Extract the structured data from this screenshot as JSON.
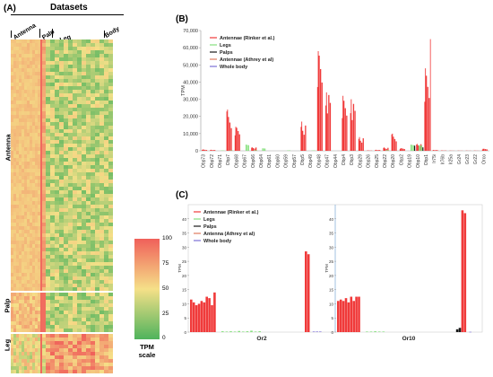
{
  "panel_a": {
    "tag": "(A)",
    "datasets_title": "Datasets",
    "column_groups": [
      "Antenna",
      "Palp",
      "Leg",
      "Body"
    ],
    "row_groups": [
      "Antenna",
      "Palp",
      "Leg"
    ],
    "colorbar": {
      "title_line1": "TPM",
      "title_line2": "scale",
      "ticks": [
        "100",
        "75",
        "50",
        "25",
        "0"
      ],
      "colors": {
        "high": "#f0605a",
        "mid": "#f5e088",
        "low": "#4fb35c"
      }
    }
  },
  "panel_b": {
    "tag": "(B)"
  },
  "panel_c": {
    "tag": "(C)"
  },
  "chart_data": [
    {
      "type": "heatmap",
      "panel": "A",
      "title": "Datasets",
      "x_groups": [
        "Antenna",
        "Palp",
        "Leg",
        "Body"
      ],
      "y_groups": [
        "Antenna",
        "Palp",
        "Leg"
      ],
      "scale_label": "TPM scale",
      "scale_range": [
        0,
        100
      ]
    },
    {
      "type": "bar",
      "panel": "B",
      "ylabel": "TPM",
      "ylim": [
        0,
        70000
      ],
      "yticks": [
        "0",
        "10,000",
        "20,000",
        "30,000",
        "40,000",
        "50,000",
        "60,000",
        "70,000"
      ],
      "legend_position": "top-left",
      "legend": [
        {
          "name": "Antennae (Rinker et al.)",
          "color": "#f03a3a"
        },
        {
          "name": "Legs",
          "color": "#86e07e"
        },
        {
          "name": "Palps",
          "color": "#1a1a1a"
        },
        {
          "name": "Antennae (Athrey et al)",
          "color": "#e07a5f"
        },
        {
          "name": "Whole body",
          "color": "#7b6fd6"
        }
      ],
      "categories": [
        "Obp73",
        "Obp72",
        "Obp71",
        "Obp7",
        "Obp68",
        "Obp67",
        "Obp66",
        "Obp64",
        "Obp61",
        "Obp60",
        "Obp59",
        "Obp57",
        "Obp5",
        "Obp49",
        "Obp48",
        "Obp47",
        "Obp44",
        "Obp4",
        "Obp3",
        "Obp29",
        "Obp26",
        "Obp25",
        "Obp22",
        "Obp20",
        "Obp2",
        "Obp19",
        "Obp10",
        "Obp1",
        "Ir75i",
        "Ir76b",
        "Ir25a",
        "Gr24",
        "Gr23",
        "Gr22",
        "Orco"
      ],
      "values": {
        "Antennae (Rinker et al.)": [
          800,
          600,
          0,
          24000,
          14000,
          0,
          2000,
          0,
          0,
          0,
          0,
          0,
          17000,
          0,
          58000,
          34000,
          0,
          32000,
          30000,
          8000,
          200,
          600,
          2000,
          10000,
          1500,
          0,
          4000,
          48000,
          500,
          200,
          100,
          100,
          100,
          100,
          1200
        ],
        "Legs": [
          0,
          0,
          300,
          300,
          0,
          4500,
          500,
          1500,
          0,
          0,
          300,
          0,
          0,
          300,
          0,
          0,
          0,
          0,
          0,
          0,
          0,
          0,
          500,
          0,
          0,
          4500,
          5000,
          0,
          0,
          0,
          0,
          0,
          0,
          0,
          0
        ],
        "Palps": [
          0,
          0,
          0,
          0,
          0,
          0,
          0,
          0,
          0,
          0,
          0,
          0,
          0,
          0,
          0,
          0,
          0,
          0,
          0,
          0,
          0,
          0,
          0,
          0,
          0,
          3000,
          2000,
          0,
          0,
          0,
          0,
          0,
          0,
          0,
          0
        ],
        "Antennae (Athrey et al)": [
          0,
          0,
          0,
          0,
          0,
          0,
          0,
          0,
          0,
          0,
          0,
          0,
          0,
          0,
          0,
          0,
          0,
          0,
          0,
          0,
          0,
          0,
          0,
          0,
          0,
          0,
          0,
          0,
          0,
          0,
          0,
          0,
          0,
          0,
          0
        ],
        "Whole body": [
          0,
          0,
          0,
          0,
          0,
          0,
          0,
          0,
          0,
          0,
          0,
          0,
          0,
          0,
          0,
          0,
          0,
          0,
          0,
          0,
          0,
          0,
          0,
          0,
          0,
          0,
          0,
          0,
          0,
          0,
          0,
          0,
          0,
          0,
          0
        ]
      }
    },
    {
      "type": "bar",
      "panel": "C",
      "ylabel": "TPM",
      "ylim": [
        0,
        45
      ],
      "yticks": [
        "0",
        "5",
        "10",
        "15",
        "20",
        "25",
        "30",
        "35",
        "40"
      ],
      "legend_position": "top-left",
      "legend": [
        {
          "name": "Antennae (Rinker et al.)",
          "color": "#f03a3a"
        },
        {
          "name": "Legs",
          "color": "#86e07e"
        },
        {
          "name": "Palps",
          "color": "#1a1a1a"
        },
        {
          "name": "Antenna (Athrey et al)",
          "color": "#e07a5f"
        },
        {
          "name": "Whole body",
          "color": "#7b6fd6"
        }
      ],
      "categories": [
        "Or2",
        "Or10"
      ],
      "groups": [
        {
          "name": "Or2",
          "antennae_rinker": [
            11.5,
            10.5,
            9.5,
            10,
            11,
            10.5,
            12.5,
            12,
            9.5,
            14
          ],
          "legs": [
            0.3,
            0.2,
            0.3,
            0.2,
            0.4,
            0.2,
            0.3,
            0.5,
            0.2,
            0.3
          ],
          "palps": [],
          "antennae_athrey": [
            28.5,
            27.5
          ],
          "whole_body": [
            0.2,
            0.2,
            0.2
          ]
        },
        {
          "name": "Or10",
          "antennae_rinker": [
            11,
            11.5,
            11,
            12,
            10.5,
            12.5,
            11,
            12.5,
            12.5
          ],
          "legs": [
            0.2,
            0.2,
            0.3,
            0.2,
            0.2
          ],
          "palps": [
            1,
            1.5
          ],
          "antennae_athrey": [
            43,
            42
          ],
          "whole_body": [
            0.1
          ]
        }
      ]
    }
  ]
}
